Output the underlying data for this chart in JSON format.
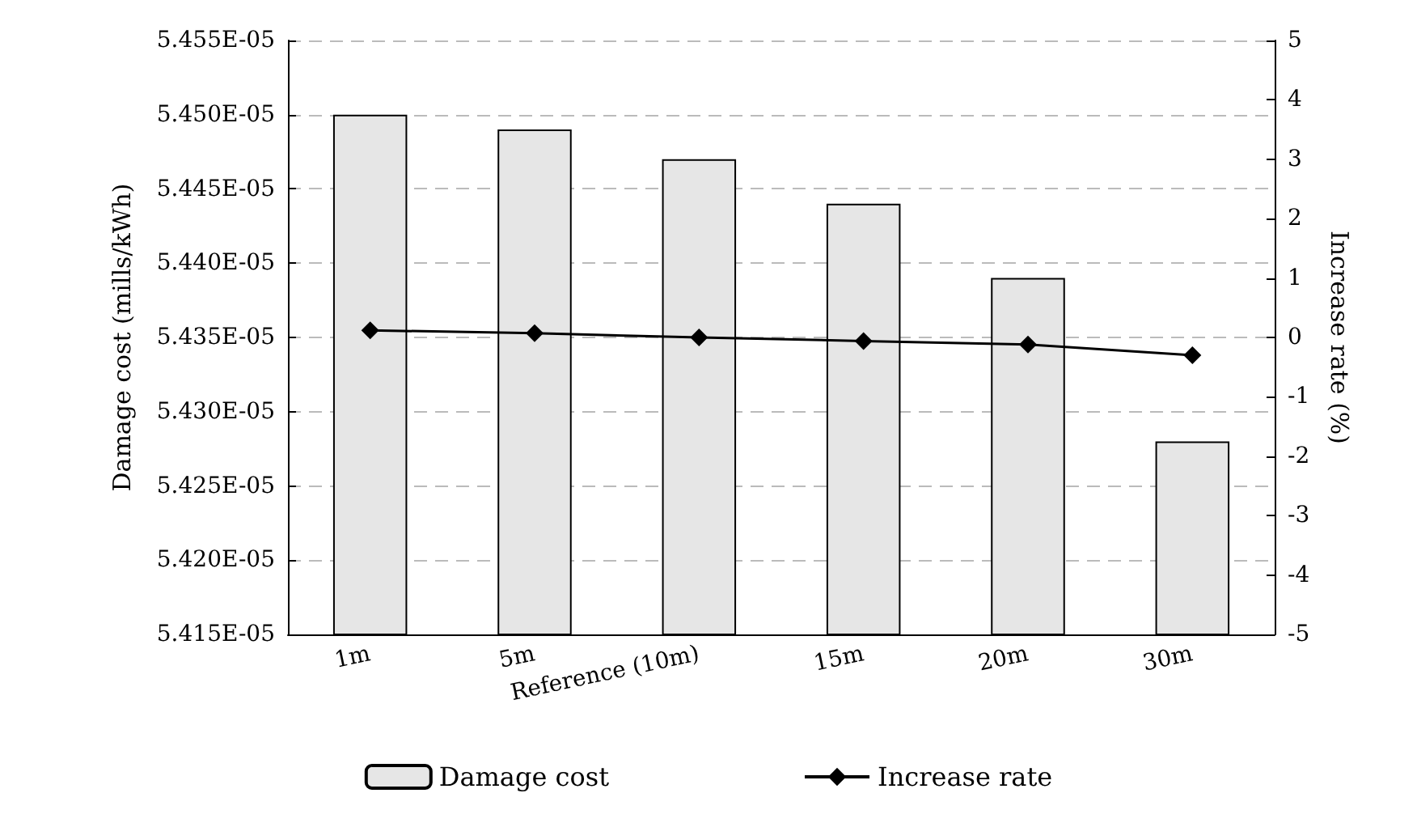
{
  "chart_data": {
    "type": "bar",
    "ylabel": "Damage cost (mills/kWh)",
    "y2label": "Increase rate (%)",
    "categories": [
      "1m",
      "5m",
      "Reference (10m)",
      "15m",
      "20m",
      "30m"
    ],
    "series": [
      {
        "name": "Damage cost",
        "color": "#e6e6e6",
        "values": [
          5.45e-05,
          5.449e-05,
          5.447e-05,
          5.444e-05,
          5.439e-05,
          5.428e-05
        ]
      },
      {
        "name": "Increase rate",
        "type": "line",
        "axis": "y2",
        "color": "#000000",
        "marker": "diamond",
        "values": [
          0.12,
          0.07,
          0,
          -0.06,
          -0.12,
          -0.3
        ]
      }
    ],
    "ylim": [
      5.415e-05,
      5.455e-05
    ],
    "yticks": [
      {
        "value": 5.415e-05,
        "label": "5.415E-05"
      },
      {
        "value": 5.42e-05,
        "label": "5.420E-05"
      },
      {
        "value": 5.425e-05,
        "label": "5.425E-05"
      },
      {
        "value": 5.43e-05,
        "label": "5.430E-05"
      },
      {
        "value": 5.435e-05,
        "label": "5.435E-05"
      },
      {
        "value": 5.44e-05,
        "label": "5.440E-05"
      },
      {
        "value": 5.445e-05,
        "label": "5.445E-05"
      },
      {
        "value": 5.45e-05,
        "label": "5.450E-05"
      },
      {
        "value": 5.455e-05,
        "label": "5.455E-05"
      }
    ],
    "y2lim": [
      -5,
      5
    ],
    "y2ticks": [
      -5,
      -4,
      -3,
      -2,
      -1,
      0,
      1,
      2,
      3,
      4,
      5
    ],
    "grid": "y",
    "legend": "bottom"
  }
}
